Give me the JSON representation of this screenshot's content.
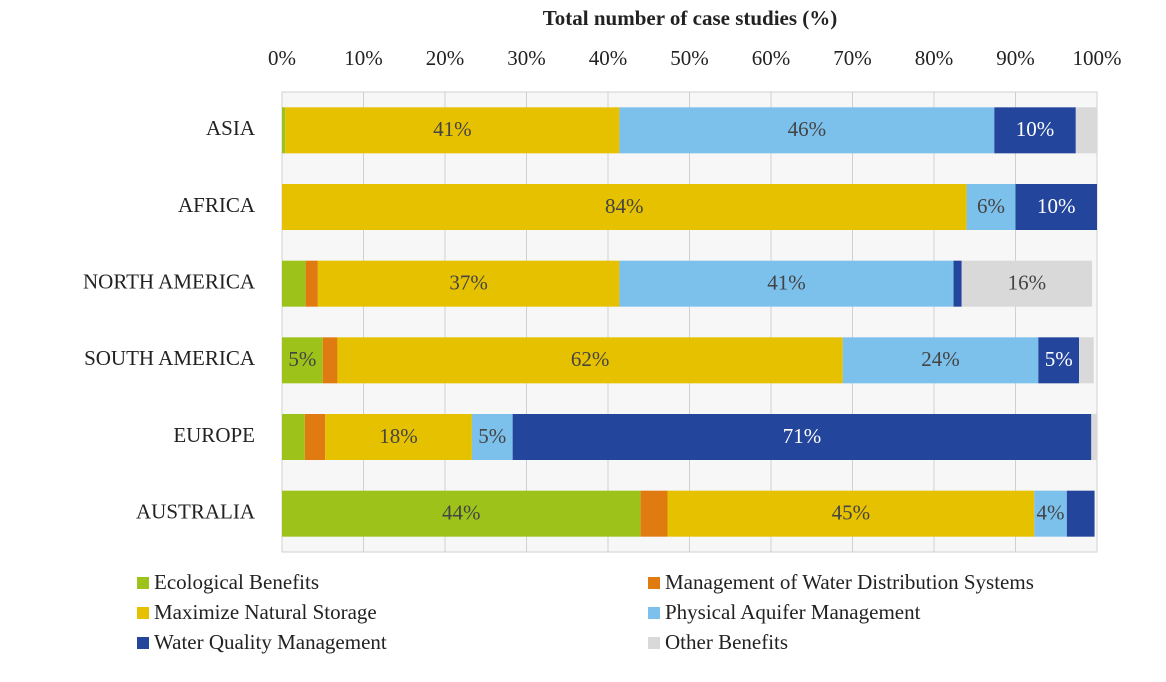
{
  "chart_data": {
    "type": "stacked-bar-horizontal",
    "x_label": "Total number of case studies (%)",
    "categories": [
      "ASIA",
      "AFRICA",
      "NORTH AMERICA",
      "SOUTH AMERICA",
      "EUROPE",
      "AUSTRALIA"
    ],
    "series": [
      {
        "name": "Ecological Benefits",
        "color": "#9dc31b",
        "values": [
          0.4,
          0,
          2.9,
          5,
          2.8,
          44
        ],
        "value_labels": [
          null,
          null,
          null,
          "5%",
          null,
          "44%"
        ]
      },
      {
        "name": "Management of Water Distribution Systems",
        "color": "#e07b12",
        "values": [
          0,
          0,
          1.5,
          1.8,
          2.5,
          3.3
        ],
        "value_labels": [
          null,
          null,
          null,
          null,
          null,
          null
        ]
      },
      {
        "name": "Maximize Natural Storage",
        "color": "#e6c100",
        "values": [
          41,
          84,
          37,
          62,
          18,
          45
        ],
        "value_labels": [
          "41%",
          "84%",
          "37%",
          "62%",
          "18%",
          "45%"
        ]
      },
      {
        "name": "Physical Aquifer Management",
        "color": "#7cc0ec",
        "values": [
          46,
          6,
          41,
          24,
          5,
          4
        ],
        "value_labels": [
          "46%",
          "6%",
          "41%",
          "24%",
          "5%",
          "4%"
        ]
      },
      {
        "name": "Water Quality Management",
        "color": "#23459c",
        "values": [
          10,
          10,
          1,
          5,
          71,
          3.4
        ],
        "value_labels": [
          "10%",
          "10%",
          null,
          "5%",
          "71%",
          null
        ]
      },
      {
        "name": "Other Benefits",
        "color": "#d9d9d9",
        "values": [
          2.6,
          0,
          16,
          1.8,
          0.7,
          0
        ],
        "value_labels": [
          null,
          null,
          "16%",
          null,
          null,
          null
        ]
      }
    ],
    "xlim": [
      0,
      100
    ],
    "xticks": [
      {
        "value": 0,
        "label": "0%"
      },
      {
        "value": 10,
        "label": "10%"
      },
      {
        "value": 20,
        "label": "20%"
      },
      {
        "value": 30,
        "label": "30%"
      },
      {
        "value": 40,
        "label": "40%"
      },
      {
        "value": 50,
        "label": "50%"
      },
      {
        "value": 60,
        "label": "60%"
      },
      {
        "value": 70,
        "label": "70%"
      },
      {
        "value": 80,
        "label": "80%"
      },
      {
        "value": 90,
        "label": "90%"
      },
      {
        "value": 100,
        "label": "100%"
      }
    ],
    "grid": true,
    "legend": "bottom"
  }
}
